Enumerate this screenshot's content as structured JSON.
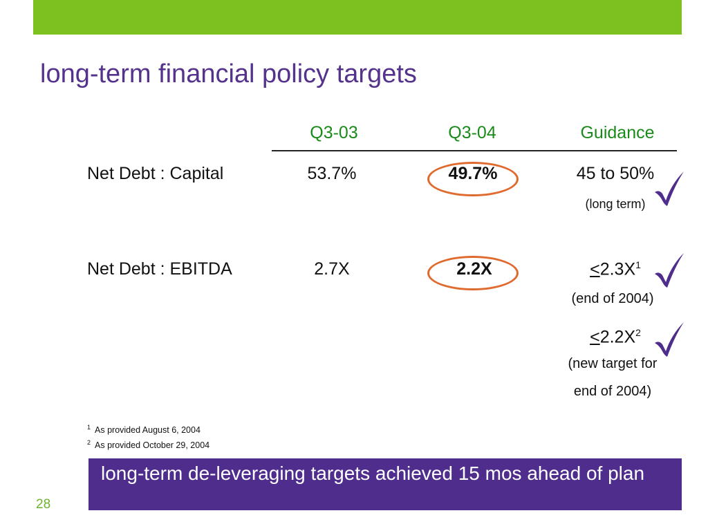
{
  "header": {
    "title": "long-term financial policy targets"
  },
  "table": {
    "columns": [
      "Q3-03",
      "Q3-04",
      "Guidance"
    ],
    "rows": [
      {
        "label": "Net Debt : Capital",
        "q3_03": "53.7%",
        "q3_04": "49.7%",
        "guidance": "45 to 50%",
        "guidance_note": "(long term)"
      },
      {
        "label": "Net Debt : EBITDA",
        "q3_03": "2.7X",
        "q3_04": "2.2X",
        "guidance_symbol": "<",
        "guidance": "2.3X",
        "guidance_sup": "1",
        "guidance_note": "(end of 2004)",
        "extra_symbol": "<",
        "extra_value": "2.2X",
        "extra_sup": "2",
        "extra_note_line1": "(new target for",
        "extra_note_line2": "end of 2004)"
      }
    ]
  },
  "footnotes": [
    {
      "num": "1",
      "text": "As provided August 6, 2004"
    },
    {
      "num": "2",
      "text": "As provided October 29, 2004"
    }
  ],
  "banner": {
    "text": "long-term de-leveraging targets achieved 15 mos ahead of plan"
  },
  "page_number": "28",
  "icons": {
    "check": "checkmark-icon",
    "highlight": "circle-highlight"
  },
  "colors": {
    "accent_green": "#7dc121",
    "title_purple": "#55338c",
    "header_green": "#1a8a1a",
    "banner_purple": "#4f2d8c",
    "ring_orange": "#e06a2e",
    "check_purple": "#4f2d8c"
  }
}
